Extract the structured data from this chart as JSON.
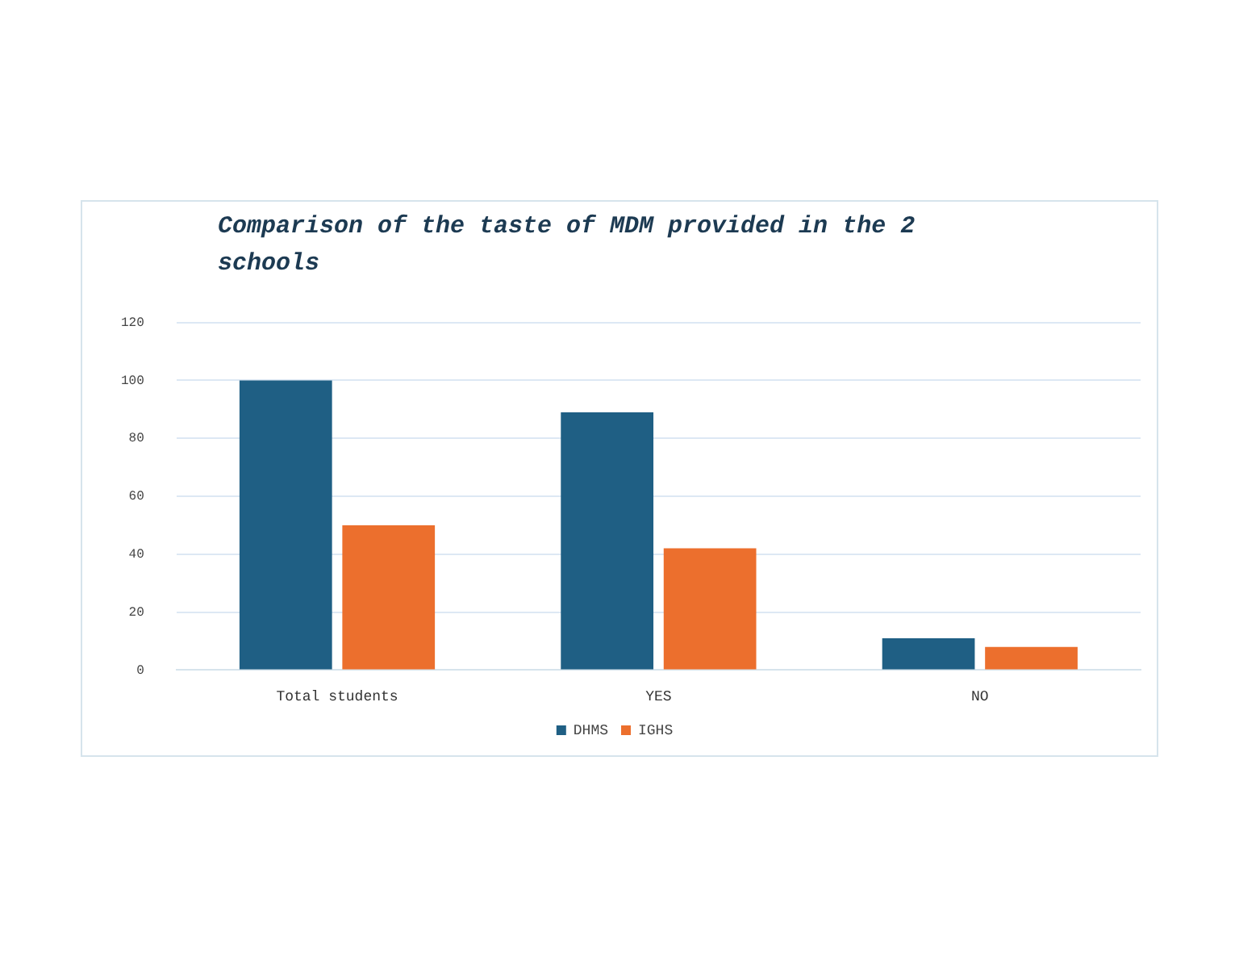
{
  "chart_data": {
    "type": "bar",
    "title": "Comparison of the taste of MDM provided in the 2 schools",
    "categories": [
      "Total students",
      "YES",
      "NO"
    ],
    "series": [
      {
        "name": "DHMS",
        "color": "#1f5f84",
        "values": [
          100,
          89,
          11
        ]
      },
      {
        "name": "IGHS",
        "color": "#ec6f2d",
        "values": [
          50,
          42,
          8
        ]
      }
    ],
    "ylim": [
      0,
      120
    ],
    "yticks": [
      0,
      20,
      40,
      60,
      80,
      100,
      120
    ],
    "grid": "y",
    "legend": "bottom"
  }
}
